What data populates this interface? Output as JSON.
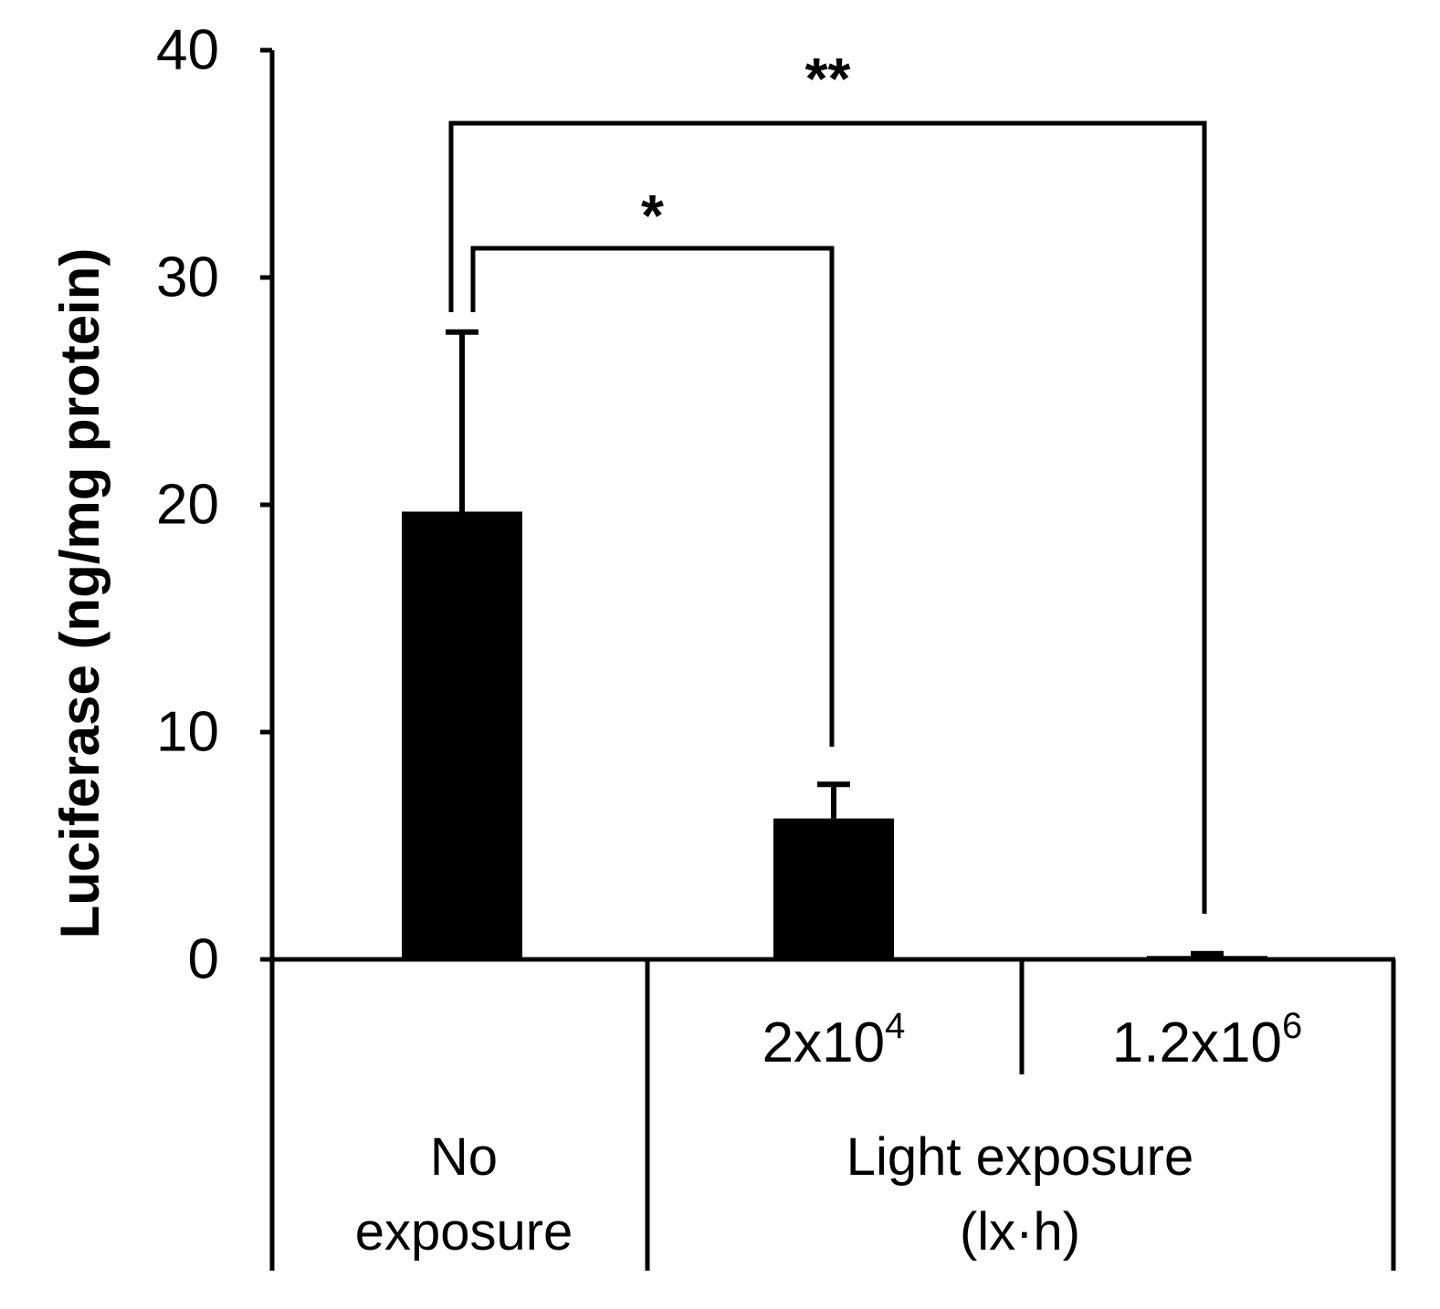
{
  "chart_data": {
    "type": "bar",
    "ylabel": "Luciferase (ng/mg protein)",
    "ylim": [
      0,
      40
    ],
    "yticks": [
      "0",
      "10",
      "20",
      "30",
      "40"
    ],
    "grid": false,
    "categories": [
      {
        "label": "",
        "base": "",
        "exp": ""
      },
      {
        "label": "2x10^4",
        "base": "2x10",
        "exp": "4"
      },
      {
        "label": "1.2x10^6",
        "base": "1.2x10",
        "exp": "6"
      }
    ],
    "values": [
      19.7,
      6.2,
      0.15
    ],
    "error": [
      7.9,
      1.5,
      0.1
    ],
    "groups": [
      {
        "lines": [
          "No",
          "exposure"
        ]
      },
      {
        "lines": [
          "Light exposure",
          "(lx·h)"
        ]
      }
    ],
    "significance": [
      {
        "from": 0,
        "to": 2,
        "label": "**"
      },
      {
        "from": 0,
        "to": 1,
        "label": "*"
      }
    ],
    "bar_color": "#000000"
  }
}
